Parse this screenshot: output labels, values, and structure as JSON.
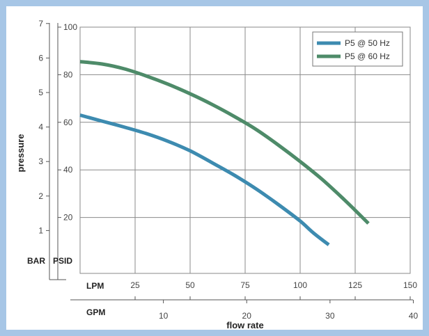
{
  "chart_data": {
    "type": "line",
    "xlabel": "flow rate",
    "ylabel": "pressure",
    "x_units": {
      "primary": "LPM",
      "secondary": "GPM"
    },
    "y_units": {
      "primary": "PSID",
      "secondary": "BAR"
    },
    "xlim": [
      0,
      150
    ],
    "ylim": [
      0,
      100
    ],
    "x_ticks_lpm": [
      25,
      50,
      75,
      100,
      125,
      150
    ],
    "x_ticks_gpm": [
      10,
      20,
      30,
      40
    ],
    "y_ticks_psid": [
      20,
      40,
      60,
      80,
      100
    ],
    "y_ticks_bar": [
      1,
      2,
      3,
      4,
      5,
      6,
      7
    ],
    "grid": true,
    "legend_position": "top-right",
    "series": [
      {
        "name": "P5 @ 50 Hz",
        "color": "#3d8bb0",
        "x": [
          0,
          10,
          20,
          30,
          40,
          50,
          60,
          70,
          80,
          90,
          100,
          106,
          113
        ],
        "y": [
          63,
          60.5,
          58,
          55.3,
          52,
          48,
          43,
          37.8,
          32,
          25.5,
          18.5,
          13.5,
          8.5
        ]
      },
      {
        "name": "P5 @ 60 Hz",
        "color": "#4e8b69",
        "x": [
          0,
          10,
          20,
          30,
          40,
          50,
          60,
          70,
          80,
          90,
          100,
          110,
          120,
          125,
          131
        ],
        "y": [
          85.5,
          84.5,
          82.5,
          79.5,
          76,
          72,
          67.5,
          62.5,
          57,
          50.5,
          43.5,
          36,
          27.5,
          23,
          17.5
        ]
      }
    ]
  }
}
